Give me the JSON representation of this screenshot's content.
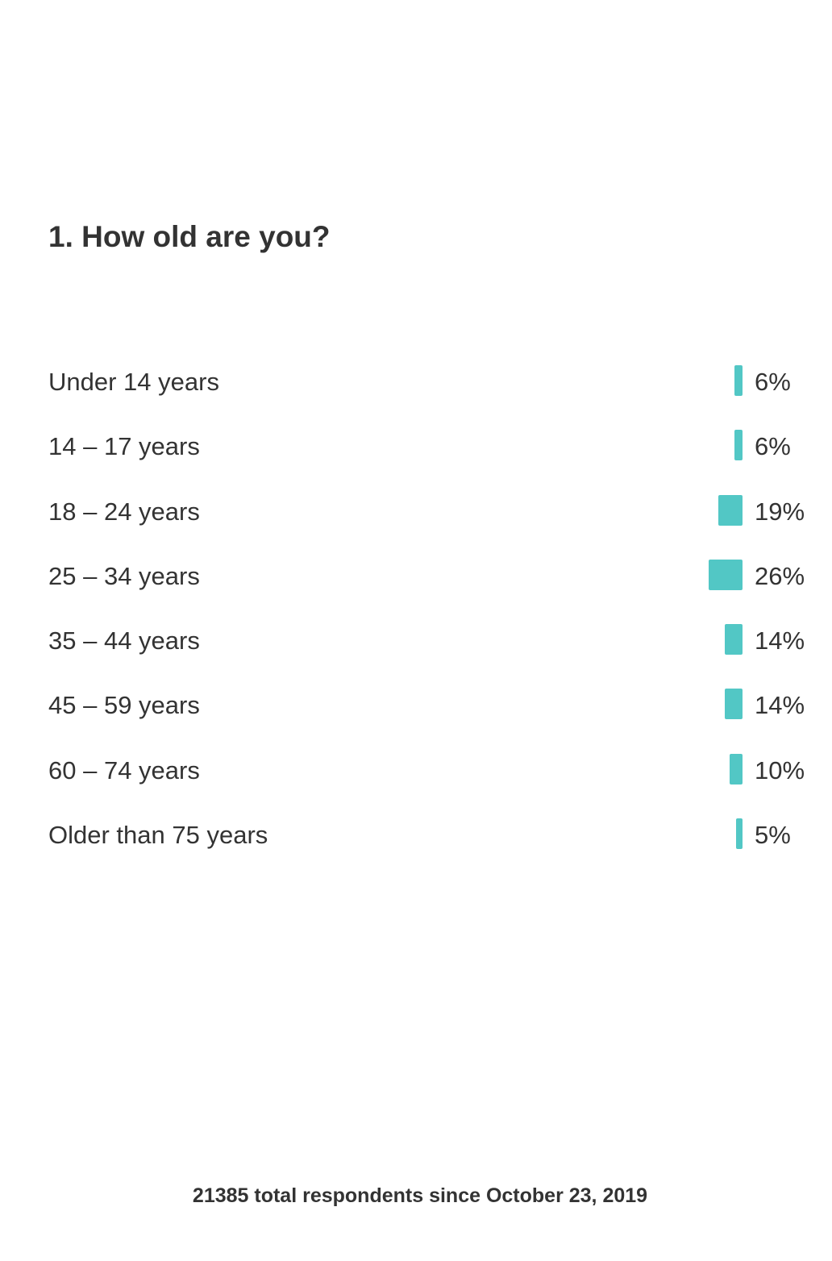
{
  "question": {
    "title": "1. How old are you?"
  },
  "chart_data": {
    "type": "bar",
    "orientation": "horizontal",
    "categories": [
      "Under 14 years",
      "14 – 17 years",
      "18 – 24 years",
      "25 – 34 years",
      "35 – 44 years",
      "45 – 59 years",
      "60 – 74 years",
      "Older than 75 years"
    ],
    "values": [
      6,
      6,
      19,
      26,
      14,
      14,
      10,
      5
    ],
    "value_labels": [
      "6%",
      "6%",
      "19%",
      "26%",
      "14%",
      "14%",
      "10%",
      "5%"
    ],
    "unit": "%",
    "bar_color": "#52c7c5",
    "grid": false
  },
  "footer": {
    "respondents_text": "21385 total respondents since October 23, 2019"
  }
}
